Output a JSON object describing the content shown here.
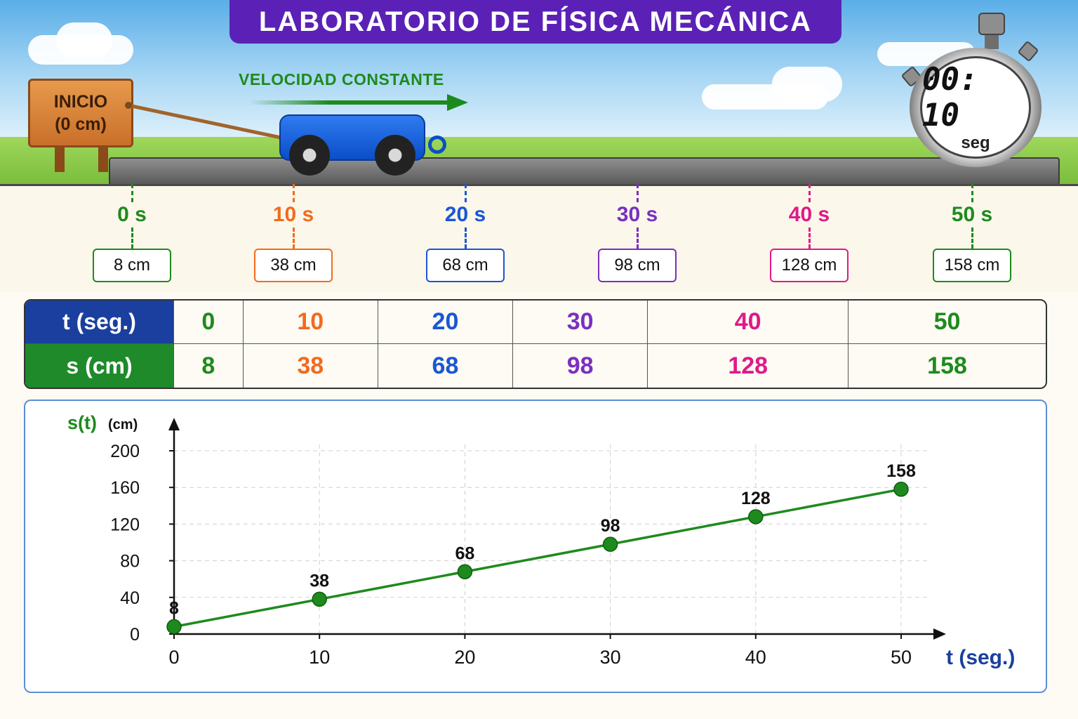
{
  "title": "LABORATORIO DE FÍSICA MECÁNICA",
  "sign": {
    "line1": "INICIO",
    "line2": "(0 cm)"
  },
  "velocity_label": "VELOCIDAD CONSTANTE",
  "stopwatch": {
    "time": "00: 10",
    "unit": "seg"
  },
  "markers": [
    {
      "time": "0 s",
      "position": "8 cm",
      "color": "#1e8a1e"
    },
    {
      "time": "10 s",
      "position": "38 cm",
      "color": "#f26b1d"
    },
    {
      "time": "20 s",
      "position": "68 cm",
      "color": "#1a56d6"
    },
    {
      "time": "30 s",
      "position": "98 cm",
      "color": "#7a2fc1"
    },
    {
      "time": "40 s",
      "position": "128 cm",
      "color": "#e0198a"
    },
    {
      "time": "50 s",
      "position": "158 cm",
      "color": "#1e8a1e"
    }
  ],
  "table": {
    "row_headers": {
      "t": "t (seg.)",
      "s": "s (cm)"
    },
    "header_colors": {
      "t": "#1a3f9e",
      "s": "#1e8a2a"
    },
    "t_values": [
      "0",
      "10",
      "20",
      "30",
      "40",
      "50"
    ],
    "s_values": [
      "8",
      "38",
      "68",
      "98",
      "128",
      "158"
    ]
  },
  "chart_data": {
    "type": "line",
    "ylabel": "s(t)",
    "ylabel_unit": "(cm)",
    "xlabel": "t (seg.)",
    "x": [
      0,
      10,
      20,
      30,
      40,
      50
    ],
    "series": [
      {
        "values": [
          8,
          38,
          68,
          98,
          128,
          158
        ],
        "color": "#1e8a1e"
      }
    ],
    "point_labels": [
      "8",
      "38",
      "68",
      "98",
      "128",
      "158"
    ],
    "xticks": [
      "0",
      "10",
      "20",
      "30",
      "40",
      "50"
    ],
    "yticks": [
      "0",
      "40",
      "80",
      "120",
      "160",
      "200"
    ],
    "xlim": [
      0,
      50
    ],
    "ylim": [
      0,
      200
    ],
    "grid": true
  }
}
